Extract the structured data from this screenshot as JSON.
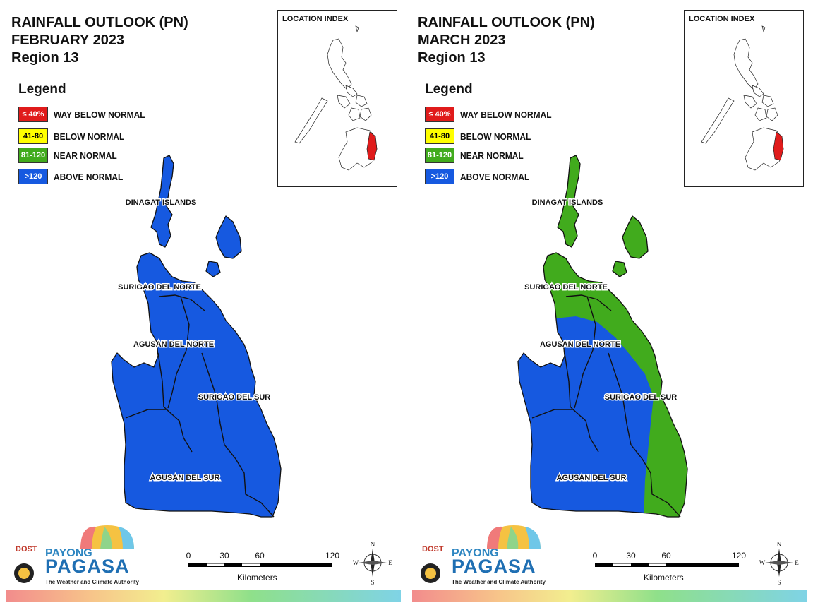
{
  "panels": [
    {
      "title_line1": "RAINFALL OUTLOOK (PN)",
      "title_line2": "FEBRUARY 2023",
      "title_line3": "Region 13",
      "provinces": {
        "dinagat": "DINAGAT ISLANDS",
        "surigao_norte": "SURIGAO DEL NORTE",
        "agusan_norte": "AGUSAN DEL NORTE",
        "surigao_sur": "SURIGAO DEL SUR",
        "agusan_sur": "AGUSAN DEL SUR"
      },
      "category_by_area": {
        "whole_region": "above_normal"
      }
    },
    {
      "title_line1": "RAINFALL OUTLOOK (PN)",
      "title_line2": "MARCH 2023",
      "title_line3": "Region 13",
      "provinces": {
        "dinagat": "DINAGAT ISLANDS",
        "surigao_norte": "SURIGAO DEL NORTE",
        "agusan_norte": "AGUSAN DEL NORTE",
        "surigao_sur": "SURIGAO DEL SUR",
        "agusan_sur": "AGUSAN DEL SUR"
      },
      "category_by_area": {
        "north_and_east_coast": "near_normal",
        "interior": "above_normal"
      }
    }
  ],
  "legend": {
    "title": "Legend",
    "items": [
      {
        "range": "≤ 40%",
        "label": "WAY BELOW NORMAL",
        "color": "#e01b1b",
        "text_color": "#ffffff"
      },
      {
        "range": "41-80",
        "label": "BELOW NORMAL",
        "color": "#ffff00",
        "text_color": "#000000"
      },
      {
        "range": "81-120",
        "label": "NEAR NORMAL",
        "color": "#41ab1d",
        "text_color": "#ffffff"
      },
      {
        "range": ">120",
        "label": "ABOVE NORMAL",
        "color": "#1659e0",
        "text_color": "#ffffff"
      }
    ]
  },
  "location_index": {
    "title": "LOCATION INDEX",
    "highlight_color": "#e01b1b"
  },
  "scale_bar": {
    "ticks": [
      "0",
      "30",
      "60",
      "120"
    ],
    "unit": "Kilometers"
  },
  "north_arrow": {
    "n": "N",
    "s": "S",
    "e": "E",
    "w": "W"
  },
  "logo": {
    "dost": "DOST",
    "payong": "PAYONG",
    "pagasa": "PAGASA",
    "tagline": "The Weather and Climate Authority"
  }
}
